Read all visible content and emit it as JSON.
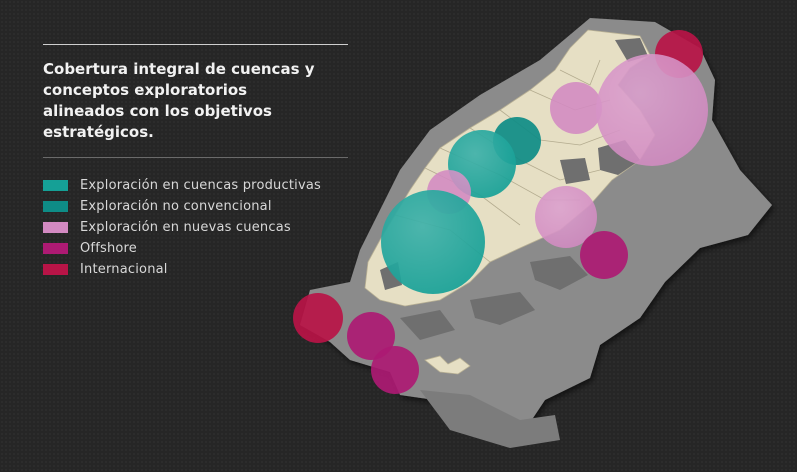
{
  "title": "Cobertura integral de cuencas y conceptos exploratorios alineados con los objetivos estratégicos.",
  "legend": [
    {
      "label": "Exploración en cuencas productivas",
      "color": "#15a096"
    },
    {
      "label": "Exploración no convencional",
      "color": "#0e8c86"
    },
    {
      "label": "Exploración en nuevas cuencas",
      "color": "#d38ac2"
    },
    {
      "label": "Offshore",
      "color": "#ad1a73"
    },
    {
      "label": "Internacional",
      "color": "#b81447"
    }
  ],
  "colors": {
    "land": "#e6dfc4",
    "sea_shelf": "#8e8e8e",
    "background": "#262626"
  }
}
